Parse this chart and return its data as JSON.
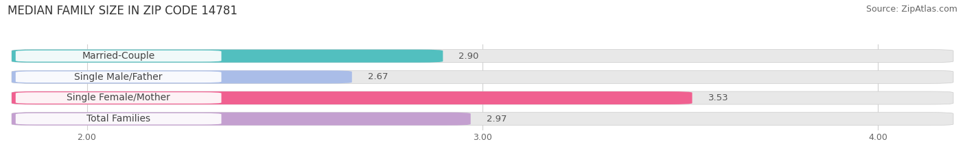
{
  "title": "MEDIAN FAMILY SIZE IN ZIP CODE 14781",
  "source": "Source: ZipAtlas.com",
  "categories": [
    "Married-Couple",
    "Single Male/Father",
    "Single Female/Mother",
    "Total Families"
  ],
  "values": [
    2.9,
    2.67,
    3.53,
    2.97
  ],
  "bar_colors": [
    "#52bfbf",
    "#aabde8",
    "#f06090",
    "#c4a0d0"
  ],
  "bar_bg_color": "#e8e8e8",
  "label_bg_color": "#f8f8f8",
  "xlim_data_min": 1.8,
  "xlim_data_max": 4.2,
  "xticks": [
    2.0,
    3.0,
    4.0
  ],
  "xtick_labels": [
    "2.00",
    "3.00",
    "4.00"
  ],
  "bar_height": 0.62,
  "title_fontsize": 12,
  "tick_fontsize": 9,
  "cat_label_fontsize": 10,
  "value_fontsize": 9.5,
  "source_fontsize": 9,
  "background_color": "#ffffff",
  "fig_width": 14.06,
  "fig_height": 2.33
}
